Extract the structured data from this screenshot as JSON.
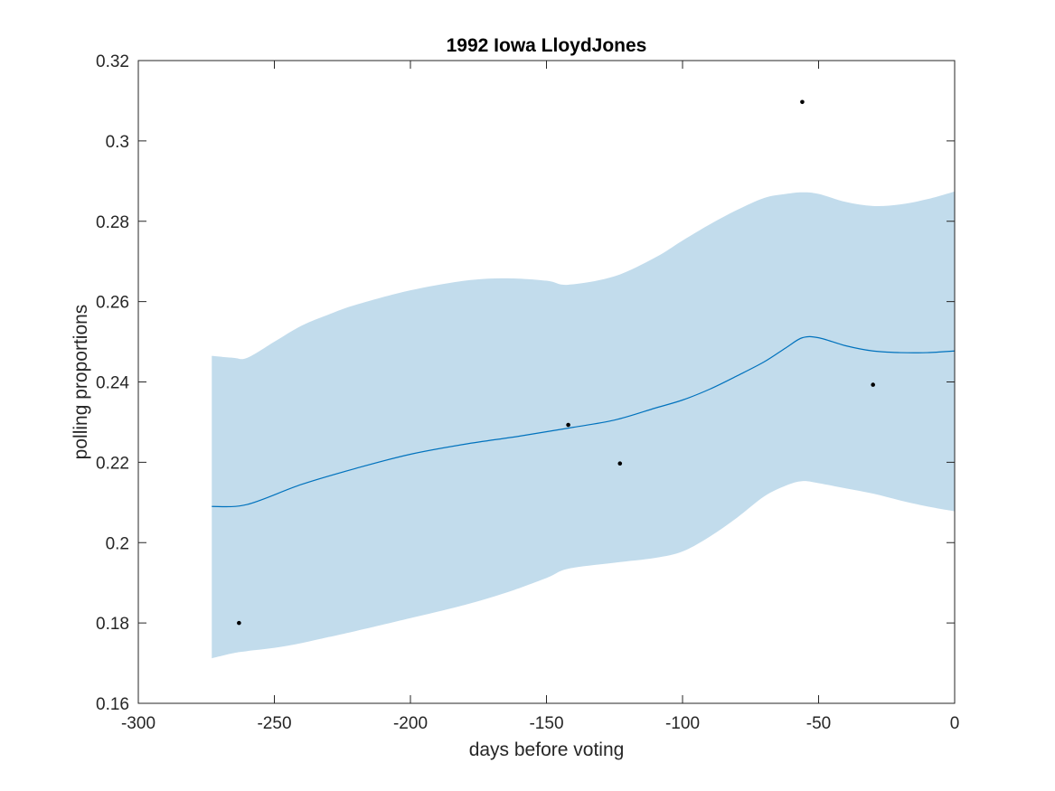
{
  "chart_data": {
    "type": "line",
    "title": "1992 Iowa LloydJones",
    "xlabel": "days before voting",
    "ylabel": "polling proportions",
    "xlim": [
      -300,
      0
    ],
    "ylim": [
      0.16,
      0.32
    ],
    "xticks": [
      -300,
      -250,
      -200,
      -150,
      -100,
      -50,
      0
    ],
    "xtick_labels": [
      "-300",
      "-250",
      "-200",
      "-150",
      "-100",
      "-50",
      "0"
    ],
    "yticks": [
      0.16,
      0.18,
      0.2,
      0.22,
      0.24,
      0.26,
      0.28,
      0.3,
      0.32
    ],
    "ytick_labels": [
      "0.16",
      "0.18",
      "0.2",
      "0.22",
      "0.24",
      "0.26",
      "0.28",
      "0.3",
      "0.32"
    ],
    "grid": false,
    "colors": {
      "line": "#0072BD",
      "band": "#c2dcec",
      "points": "#000000",
      "axes": "#262626"
    },
    "trend": {
      "x": [
        -273,
        -260,
        -240,
        -220,
        -200,
        -180,
        -160,
        -142,
        -125,
        -110,
        -100,
        -90,
        -80,
        -70,
        -62,
        -56,
        -50,
        -40,
        -30,
        -20,
        -10,
        0
      ],
      "y": [
        0.209,
        0.2095,
        0.2145,
        0.2185,
        0.222,
        0.2245,
        0.2265,
        0.2285,
        0.2305,
        0.2335,
        0.2355,
        0.2382,
        0.2415,
        0.245,
        0.2485,
        0.251,
        0.251,
        0.249,
        0.2477,
        0.2473,
        0.2473,
        0.2477
      ]
    },
    "band": {
      "x": [
        -273,
        -265,
        -260,
        -250,
        -240,
        -230,
        -220,
        -200,
        -180,
        -165,
        -150,
        -142,
        -125,
        -110,
        -100,
        -90,
        -80,
        -70,
        -62,
        -56,
        -50,
        -40,
        -30,
        -20,
        -10,
        0
      ],
      "upper": [
        0.2465,
        0.246,
        0.246,
        0.25,
        0.254,
        0.2568,
        0.2592,
        0.2628,
        0.2652,
        0.2658,
        0.2652,
        0.2642,
        0.2663,
        0.271,
        0.2752,
        0.2792,
        0.2828,
        0.2858,
        0.2868,
        0.2872,
        0.2868,
        0.2848,
        0.2838,
        0.2842,
        0.2855,
        0.2874
      ],
      "lower": [
        0.1712,
        0.1725,
        0.173,
        0.1738,
        0.175,
        0.1765,
        0.178,
        0.1812,
        0.1845,
        0.1875,
        0.1912,
        0.1935,
        0.195,
        0.1962,
        0.1978,
        0.2015,
        0.2062,
        0.2115,
        0.2142,
        0.2153,
        0.2148,
        0.2135,
        0.2122,
        0.2105,
        0.209,
        0.2078
      ]
    },
    "points": {
      "x": [
        -263,
        -142,
        -123,
        -56,
        -30
      ],
      "y": [
        0.18,
        0.2293,
        0.2197,
        0.3097,
        0.2393
      ]
    }
  }
}
